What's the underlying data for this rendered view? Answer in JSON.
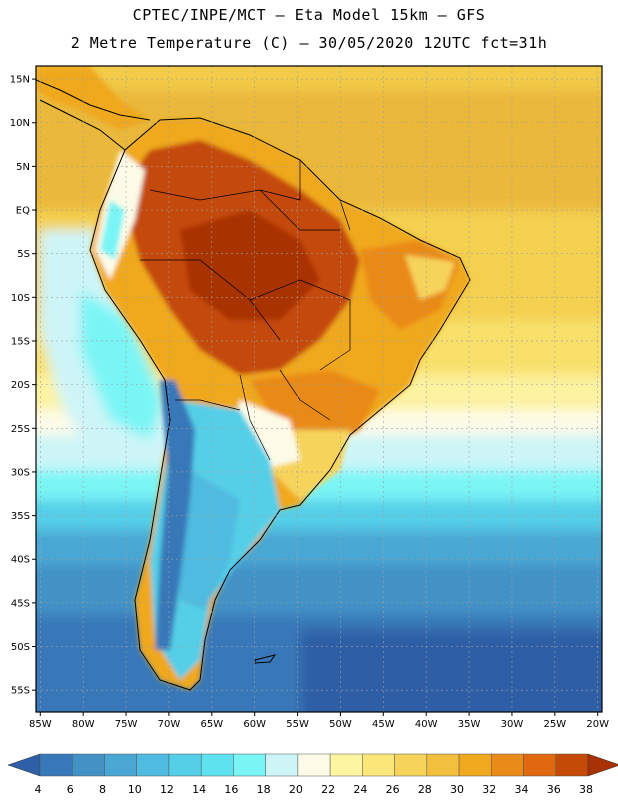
{
  "title": {
    "line1": "CPTEC/INPE/MCT –  Eta Model 15km – GFS",
    "line2": "2 Metre Temperature (C) – 30/05/2020 12UTC fct=31h"
  },
  "map": {
    "lat_labels": [
      "15N",
      "10N",
      "5N",
      "EQ",
      "5S",
      "10S",
      "15S",
      "20S",
      "25S",
      "30S",
      "35S",
      "40S",
      "45S",
      "50S",
      "55S"
    ],
    "lon_labels": [
      "85W",
      "80W",
      "75W",
      "70W",
      "65W",
      "60W",
      "55W",
      "50W",
      "45W",
      "40W",
      "35W",
      "30W",
      "25W",
      "20W"
    ],
    "lat_values": [
      15,
      10,
      5,
      0,
      -5,
      -10,
      -15,
      -20,
      -25,
      -30,
      -35,
      -40,
      -45,
      -50,
      -55
    ],
    "lon_values": [
      -85,
      -80,
      -75,
      -70,
      -65,
      -60,
      -55,
      -50,
      -45,
      -40,
      -35,
      -30,
      -25,
      -20
    ],
    "extent": {
      "lon_min": -85.5,
      "lon_max": -19.5,
      "lat_min": -57.5,
      "lat_max": 16.5
    }
  },
  "colorbar": {
    "labels": [
      "4",
      "6",
      "8",
      "10",
      "12",
      "14",
      "16",
      "18",
      "20",
      "22",
      "24",
      "26",
      "28",
      "30",
      "32",
      "34",
      "36",
      "38"
    ],
    "colors": [
      "#2f5fa6",
      "#3778b8",
      "#4292c6",
      "#4aa7d4",
      "#4fbbe0",
      "#55cfe8",
      "#5fe2ef",
      "#7af5f5",
      "#cdf5f8",
      "#fdfbe8",
      "#fdf6a0",
      "#fbe67a",
      "#f6d45c",
      "#f2c03e",
      "#f0a81e",
      "#ea8a18",
      "#e06810",
      "#c44a08",
      "#a83206"
    ]
  }
}
